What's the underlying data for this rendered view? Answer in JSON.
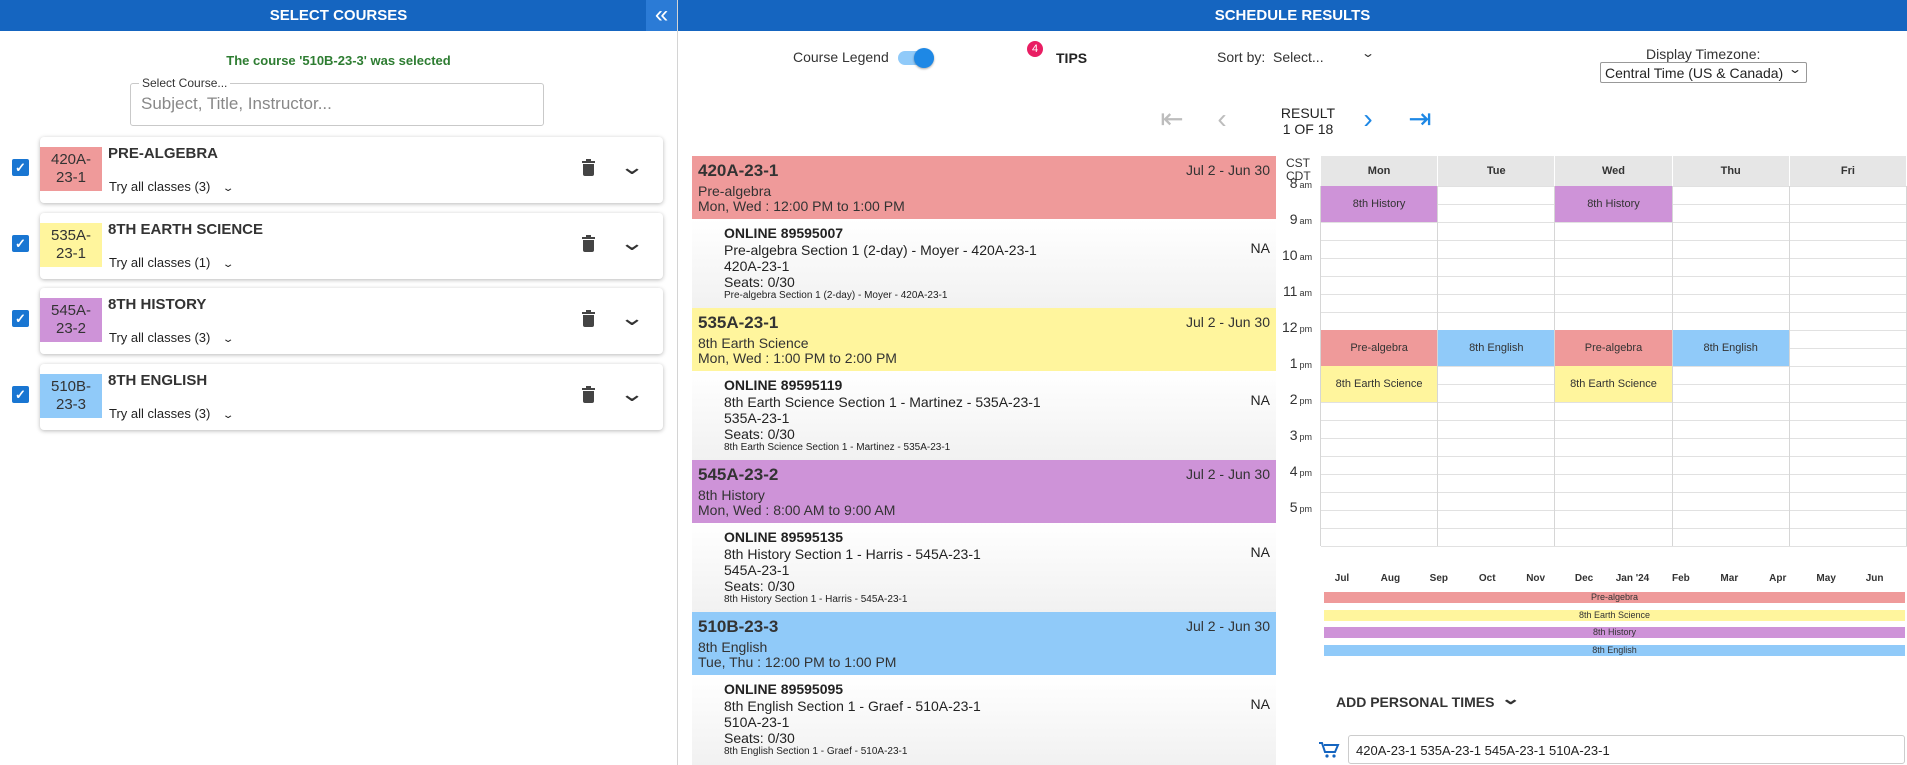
{
  "left_header": {
    "title": "SELECT COURSES",
    "collapse_icon": "double-chevron-left-icon"
  },
  "selection_message": "The course '510B-23-3' was selected",
  "course_search": {
    "label": "Select Course...",
    "placeholder": "Subject, Title, Instructor..."
  },
  "selected_courses": [
    {
      "code_line1": "420A-",
      "code_line2": "23-1",
      "name": "PRE-ALGEBRA",
      "try_label": "Try all classes (3)",
      "color": "#ef9a9a",
      "checked": true
    },
    {
      "code_line1": "535A-",
      "code_line2": "23-1",
      "name": "8TH EARTH SCIENCE",
      "try_label": "Try all classes (1)",
      "color": "#fff59d",
      "checked": true
    },
    {
      "code_line1": "545A-",
      "code_line2": "23-2",
      "name": "8TH HISTORY",
      "try_label": "Try all classes (3)",
      "color": "#ce93d8",
      "checked": true
    },
    {
      "code_line1": "510B-",
      "code_line2": "23-3",
      "name": "8TH ENGLISH",
      "try_label": "Try all classes (3)",
      "color": "#90caf9",
      "checked": true
    }
  ],
  "right_header": {
    "title": "SCHEDULE RESULTS"
  },
  "controls": {
    "course_legend_label": "Course Legend",
    "course_legend_on": true,
    "tips_count": "4",
    "tips_label": "TIPS",
    "sort_by_label": "Sort by:",
    "sort_by_value": "Select...",
    "timezone_label": "Display Timezone:",
    "timezone_value": "Central Time (US & Canada)"
  },
  "pagination": {
    "result_label": "RESULT",
    "result_count": "1 OF 18"
  },
  "schedule": [
    {
      "code": "420A-23-1",
      "title": "Pre-algebra",
      "days": "Mon, Wed : 12:00 PM to 1:00 PM",
      "date_range": "Jul 2 - Jun 30",
      "color": "#ef9a9a",
      "section": {
        "online": "ONLINE 89595007",
        "line1": "Pre-algebra Section 1 (2-day) - Moyer - 420A-23-1",
        "line2": "420A-23-1",
        "seats": "Seats: 0/30",
        "small": "Pre-algebra Section 1 (2-day) - Moyer - 420A-23-1",
        "na": "NA"
      }
    },
    {
      "code": "535A-23-1",
      "title": "8th Earth Science",
      "days": "Mon, Wed : 1:00 PM to 2:00 PM",
      "date_range": "Jul 2 - Jun 30",
      "color": "#fff59d",
      "section": {
        "online": "ONLINE 89595119",
        "line1": "8th Earth Science Section 1 - Martinez - 535A-23-1",
        "line2": "535A-23-1",
        "seats": "Seats: 0/30",
        "small": "8th Earth Science Section 1 - Martinez - 535A-23-1",
        "na": "NA"
      }
    },
    {
      "code": "545A-23-2",
      "title": "8th History",
      "days": "Mon, Wed : 8:00 AM to 9:00 AM",
      "date_range": "Jul 2 - Jun 30",
      "color": "#ce93d8",
      "section": {
        "online": "ONLINE 89595135",
        "line1": "8th History Section 1 - Harris - 545A-23-1",
        "line2": "545A-23-1",
        "seats": "Seats: 0/30",
        "small": "8th History Section 1 - Harris - 545A-23-1",
        "na": "NA"
      }
    },
    {
      "code": "510B-23-3",
      "title": "8th English",
      "days": "Tue, Thu : 12:00 PM to 1:00 PM",
      "date_range": "Jul 2 - Jun 30",
      "color": "#90caf9",
      "section": {
        "online": "ONLINE 89595095",
        "line1": "8th English Section 1 - Graef - 510A-23-1",
        "line2": "510A-23-1",
        "seats": "Seats: 0/30",
        "small": "8th English Section 1 - Graef - 510A-23-1",
        "na": "NA"
      }
    }
  ],
  "calendar": {
    "tz_line1": "CST",
    "tz_line2": "CDT",
    "days": [
      "Mon",
      "Tue",
      "Wed",
      "Thu",
      "Fri"
    ],
    "hours": [
      {
        "h": "8",
        "ampm": "am"
      },
      {
        "h": "9",
        "ampm": "am"
      },
      {
        "h": "10",
        "ampm": "am"
      },
      {
        "h": "11",
        "ampm": "am"
      },
      {
        "h": "12",
        "ampm": "pm"
      },
      {
        "h": "1",
        "ampm": "pm"
      },
      {
        "h": "2",
        "ampm": "pm"
      },
      {
        "h": "3",
        "ampm": "pm"
      },
      {
        "h": "4",
        "ampm": "pm"
      },
      {
        "h": "5",
        "ampm": "pm"
      }
    ],
    "events": [
      {
        "label": "8th History",
        "day": 0,
        "start": 8,
        "end": 9,
        "color": "#ce93d8"
      },
      {
        "label": "8th History",
        "day": 2,
        "start": 8,
        "end": 9,
        "color": "#ce93d8"
      },
      {
        "label": "Pre-algebra",
        "day": 0,
        "start": 12,
        "end": 13,
        "color": "#ef9a9a"
      },
      {
        "label": "8th English",
        "day": 1,
        "start": 12,
        "end": 13,
        "color": "#90caf9"
      },
      {
        "label": "Pre-algebra",
        "day": 2,
        "start": 12,
        "end": 13,
        "color": "#ef9a9a"
      },
      {
        "label": "8th English",
        "day": 3,
        "start": 12,
        "end": 13,
        "color": "#90caf9"
      },
      {
        "label": "8th Earth Science",
        "day": 0,
        "start": 13,
        "end": 14,
        "color": "#fff59d"
      },
      {
        "label": "8th Earth Science",
        "day": 2,
        "start": 13,
        "end": 14,
        "color": "#fff59d"
      }
    ]
  },
  "timeline": {
    "months": [
      "Jul",
      "Aug",
      "Sep",
      "Oct",
      "Nov",
      "Dec",
      "Jan '24",
      "Feb",
      "Mar",
      "Apr",
      "May",
      "Jun"
    ],
    "bars": [
      {
        "label": "Pre-algebra",
        "color": "#ef9a9a"
      },
      {
        "label": "8th Earth Science",
        "color": "#fff59d"
      },
      {
        "label": "8th History",
        "color": "#ce93d8"
      },
      {
        "label": "8th English",
        "color": "#90caf9"
      }
    ]
  },
  "personal_times": {
    "label": "ADD PERSONAL TIMES"
  },
  "cart": {
    "value": "420A-23-1 535A-23-1 545A-23-1 510A-23-1"
  }
}
